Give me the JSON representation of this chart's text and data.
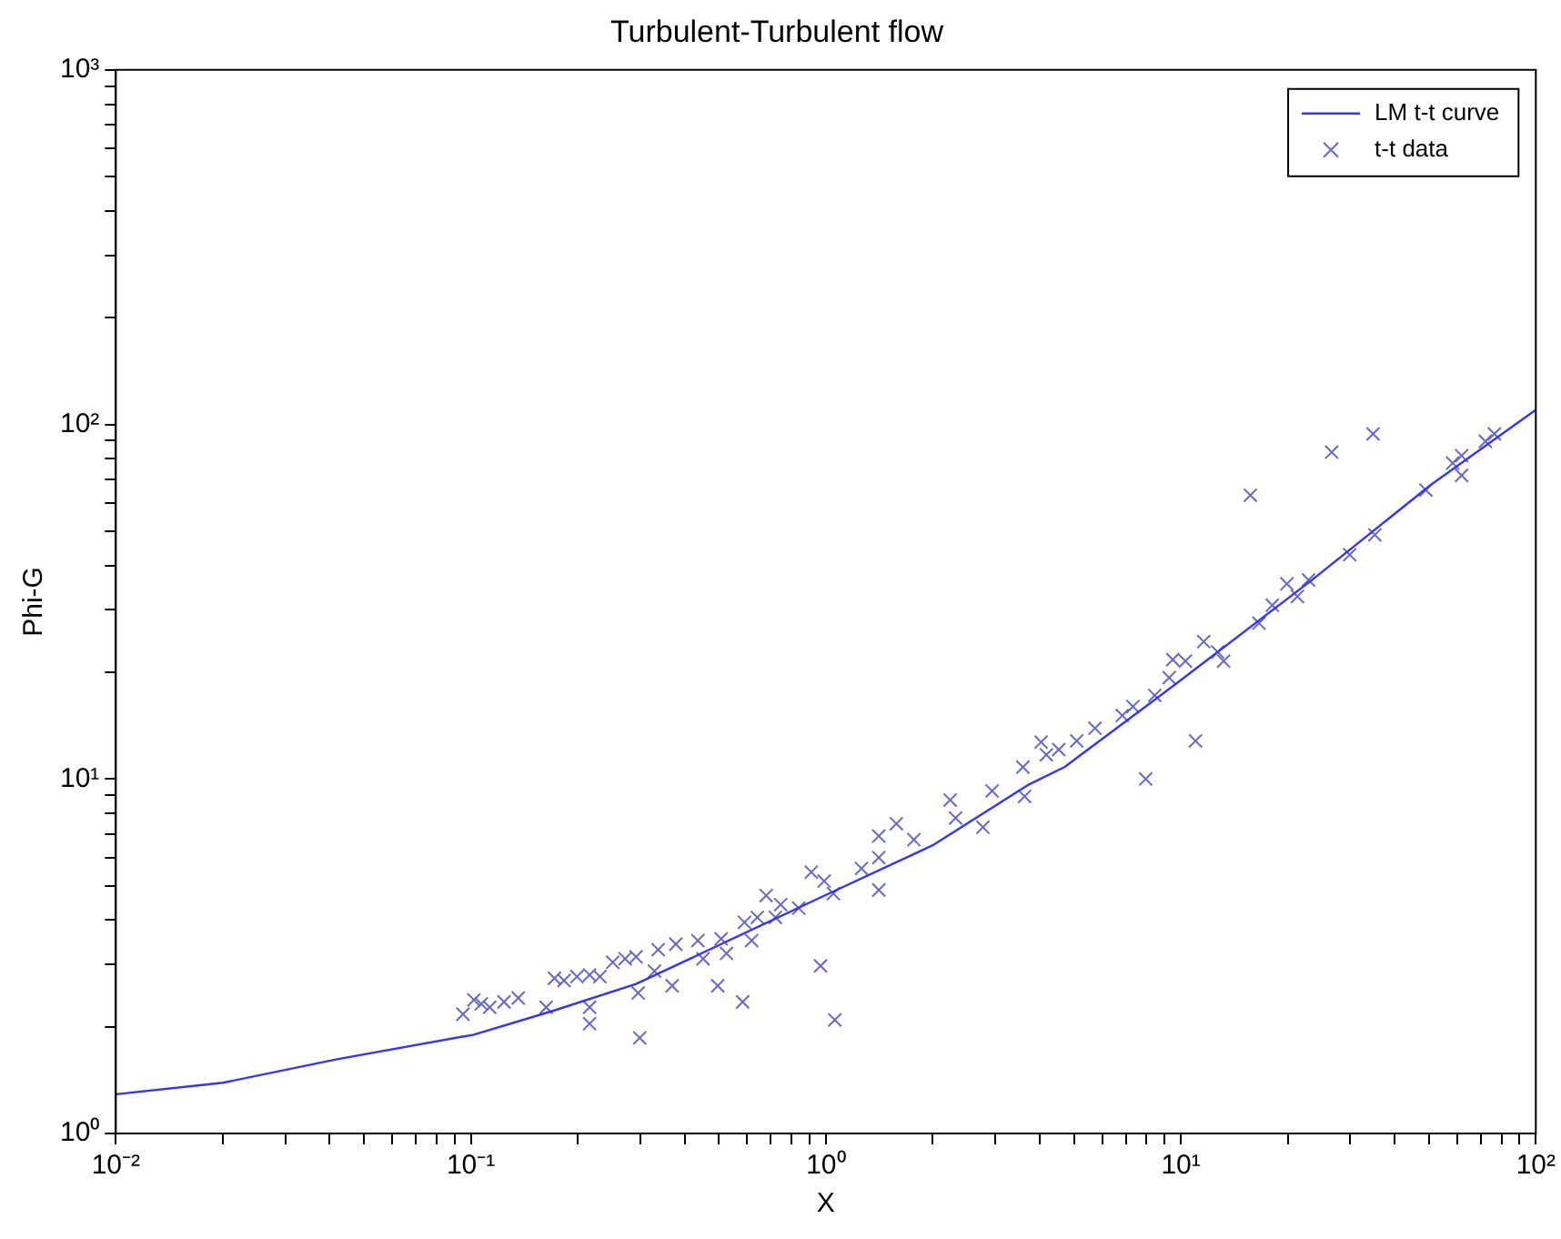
{
  "chart_data": {
    "type": "scatter",
    "title": "Turbulent-Turbulent flow",
    "xlabel": "X",
    "ylabel": "Phi-G",
    "log": "xy",
    "grid": false,
    "legend": "top right",
    "xlim": [
      0.01,
      100
    ],
    "ylim": [
      1,
      1000
    ],
    "xticks": [
      {
        "value": 0.01,
        "label": "10⁻²"
      },
      {
        "value": 0.02,
        "label": null
      },
      {
        "value": 0.03,
        "label": null
      },
      {
        "value": 0.04,
        "label": null
      },
      {
        "value": 0.05,
        "label": null
      },
      {
        "value": 0.06,
        "label": null
      },
      {
        "value": 0.07,
        "label": null
      },
      {
        "value": 0.08,
        "label": null
      },
      {
        "value": 0.09,
        "label": null
      },
      {
        "value": 0.1,
        "label": "10⁻¹"
      },
      {
        "value": 0.2,
        "label": null
      },
      {
        "value": 0.3,
        "label": null
      },
      {
        "value": 0.4,
        "label": null
      },
      {
        "value": 0.5,
        "label": null
      },
      {
        "value": 0.6,
        "label": null
      },
      {
        "value": 0.7,
        "label": null
      },
      {
        "value": 0.8,
        "label": null
      },
      {
        "value": 0.9,
        "label": null
      },
      {
        "value": 1,
        "label": "10⁰"
      },
      {
        "value": 2,
        "label": null
      },
      {
        "value": 3,
        "label": null
      },
      {
        "value": 4,
        "label": null
      },
      {
        "value": 5,
        "label": null
      },
      {
        "value": 6,
        "label": null
      },
      {
        "value": 7,
        "label": null
      },
      {
        "value": 8,
        "label": null
      },
      {
        "value": 9,
        "label": null
      },
      {
        "value": 10,
        "label": "10¹"
      },
      {
        "value": 20,
        "label": null
      },
      {
        "value": 30,
        "label": null
      },
      {
        "value": 40,
        "label": null
      },
      {
        "value": 50,
        "label": null
      },
      {
        "value": 60,
        "label": null
      },
      {
        "value": 70,
        "label": null
      },
      {
        "value": 80,
        "label": null
      },
      {
        "value": 90,
        "label": null
      },
      {
        "value": 100,
        "label": "10²"
      }
    ],
    "yticks": [
      {
        "value": 1,
        "label": "10⁰"
      },
      {
        "value": 2,
        "label": null
      },
      {
        "value": 3,
        "label": null
      },
      {
        "value": 4,
        "label": null
      },
      {
        "value": 5,
        "label": null
      },
      {
        "value": 6,
        "label": null
      },
      {
        "value": 7,
        "label": null
      },
      {
        "value": 8,
        "label": null
      },
      {
        "value": 9,
        "label": null
      },
      {
        "value": 10,
        "label": "10¹"
      },
      {
        "value": 20,
        "label": null
      },
      {
        "value": 30,
        "label": null
      },
      {
        "value": 40,
        "label": null
      },
      {
        "value": 50,
        "label": null
      },
      {
        "value": 60,
        "label": null
      },
      {
        "value": 70,
        "label": null
      },
      {
        "value": 80,
        "label": null
      },
      {
        "value": 90,
        "label": null
      },
      {
        "value": 100,
        "label": "10²"
      },
      {
        "value": 200,
        "label": null
      },
      {
        "value": 300,
        "label": null
      },
      {
        "value": 400,
        "label": null
      },
      {
        "value": 500,
        "label": null
      },
      {
        "value": 600,
        "label": null
      },
      {
        "value": 700,
        "label": null
      },
      {
        "value": 800,
        "label": null
      },
      {
        "value": 900,
        "label": null
      },
      {
        "value": 1000,
        "label": "10³"
      }
    ],
    "series": [
      {
        "name": "LM t-t curve",
        "type": "line",
        "color": "#3333ff",
        "marker": "none",
        "line_style": "solid",
        "x": [
          0.01,
          0.02,
          0.042,
          0.102,
          0.171,
          0.292,
          1.02,
          2.0,
          3.7,
          4.7,
          9.8,
          23.4,
          50.7,
          100
        ],
        "values": [
          1.29,
          1.39,
          1.62,
          1.9,
          2.22,
          2.64,
          4.75,
          6.5,
          9.6,
          10.8,
          18.7,
          36.4,
          67.6,
          110
        ]
      },
      {
        "name": "t-t data",
        "type": "scatter",
        "color": "#6666cc",
        "marker": "cross",
        "x": [
          0.095,
          0.102,
          0.107,
          0.113,
          0.124,
          0.136,
          0.163,
          0.172,
          0.183,
          0.199,
          0.216,
          0.231,
          0.251,
          0.272,
          0.292,
          0.216,
          0.216,
          0.299,
          0.296,
          0.337,
          0.378,
          0.436,
          0.507,
          0.59,
          0.641,
          0.679,
          0.746,
          0.839,
          0.91,
          0.989,
          1.05,
          1.26,
          1.41,
          1.41,
          1.41,
          1.58,
          1.77,
          2.24,
          2.32,
          2.77,
          2.94,
          3.59,
          3.63,
          4.04,
          0.966,
          0.496,
          0.583,
          1.06,
          0.369,
          0.329,
          0.451,
          0.525,
          0.618,
          0.721,
          4.18,
          4.53,
          5.09,
          5.73,
          6.84,
          7.33,
          8.44,
          9.27,
          10.3,
          9.49,
          11.6,
          12.7,
          13.2,
          11.0,
          7.96,
          16.6,
          18.1,
          19.9,
          21.3,
          22.9,
          29.9,
          35.2,
          49.0,
          58.3,
          61.8,
          61.8,
          72.1,
          76.4,
          15.7,
          26.6,
          34.8
        ],
        "values": [
          2.17,
          2.38,
          2.32,
          2.27,
          2.35,
          2.41,
          2.27,
          2.74,
          2.7,
          2.77,
          2.8,
          2.77,
          3.04,
          3.11,
          3.15,
          2.27,
          2.04,
          1.86,
          2.49,
          3.3,
          3.42,
          3.5,
          3.54,
          3.94,
          4.07,
          4.69,
          4.42,
          4.32,
          5.46,
          5.15,
          4.75,
          5.59,
          6.9,
          6.0,
          4.86,
          7.48,
          6.74,
          8.72,
          7.76,
          7.31,
          9.25,
          10.8,
          8.93,
          12.7,
          2.97,
          2.61,
          2.35,
          2.09,
          2.61,
          2.87,
          3.11,
          3.22,
          3.5,
          4.07,
          11.7,
          12.1,
          12.8,
          13.9,
          15.1,
          16.0,
          17.2,
          19.3,
          21.5,
          21.7,
          24.4,
          22.8,
          21.5,
          12.8,
          10.0,
          27.5,
          30.9,
          35.5,
          32.7,
          36.4,
          42.9,
          48.8,
          65.3,
          77.8,
          71.8,
          81.6,
          89.6,
          94.0,
          63.1,
          83.5,
          94.0
        ]
      }
    ]
  }
}
